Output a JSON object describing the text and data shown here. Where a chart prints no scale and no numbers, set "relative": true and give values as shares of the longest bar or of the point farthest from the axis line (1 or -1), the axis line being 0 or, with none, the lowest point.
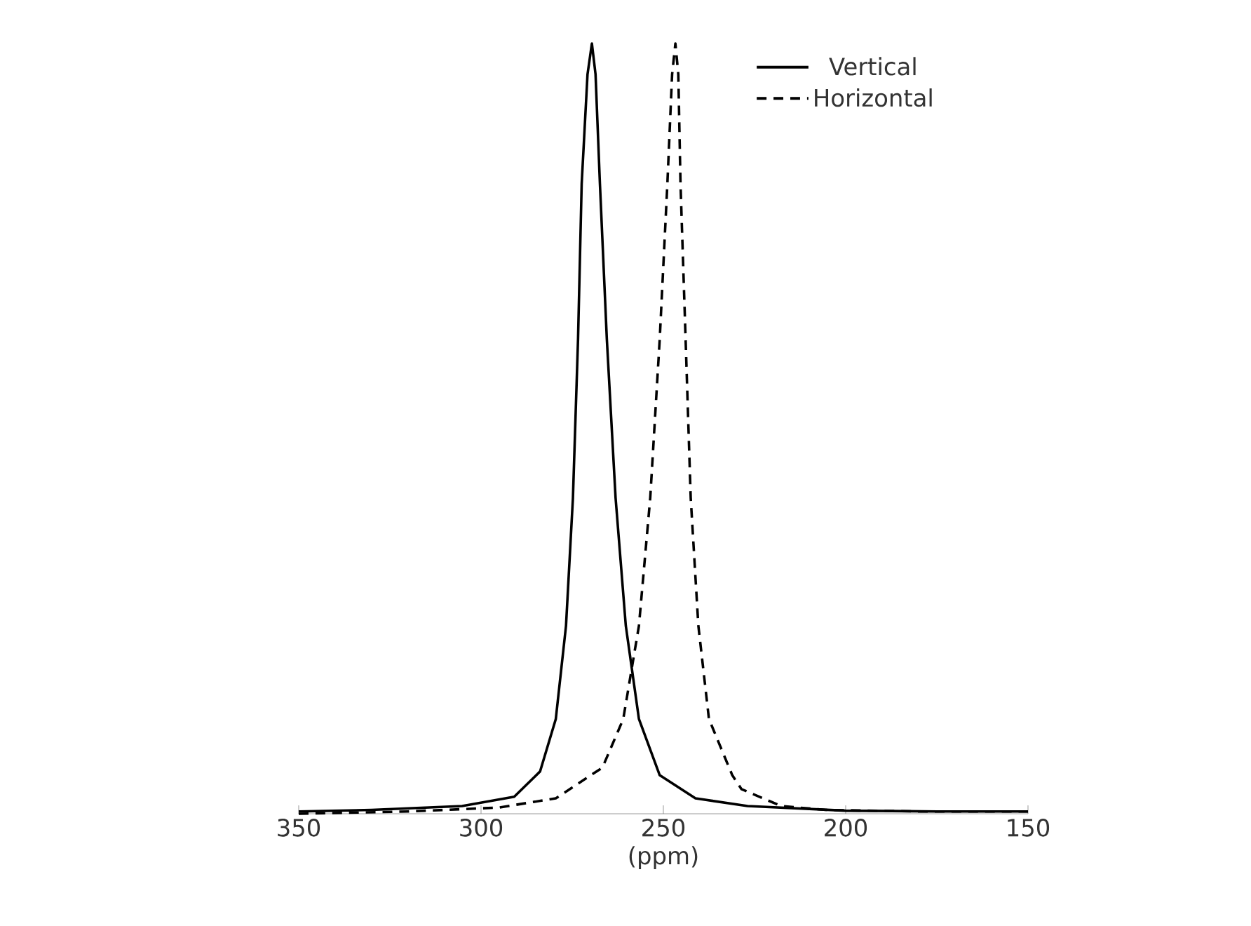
{
  "chart_data": {
    "type": "line",
    "xlabel": "(ppm)",
    "relative": true,
    "xlim": [
      350,
      150
    ],
    "xticks": [
      350,
      300,
      250,
      200,
      150
    ],
    "grid": false,
    "legend": "top right",
    "marker": "none",
    "series": [
      {
        "name": "Vertical",
        "color": "#000000",
        "line_style": "solid",
        "x": [
          350,
          330,
          305.2,
          290.9,
          283.8,
          279.5,
          276.7,
          274.8,
          273.4,
          272.4,
          270.8,
          269.6,
          268.6,
          267.4,
          265.5,
          263.1,
          260.3,
          256.7,
          251,
          241.2,
          226.9,
          200,
          175,
          150
        ],
        "values": [
          0.003,
          0.005,
          0.01,
          0.022,
          0.055,
          0.123,
          0.244,
          0.41,
          0.616,
          0.818,
          0.96,
          1.0,
          0.96,
          0.818,
          0.616,
          0.41,
          0.244,
          0.123,
          0.05,
          0.02,
          0.01,
          0.004,
          0.003,
          0.003
        ]
      },
      {
        "name": "Horizontal",
        "color": "#000000",
        "line_style": "dashed",
        "x": [
          350,
          320,
          295.2,
          279.5,
          266.7,
          261,
          256.7,
          253.6,
          251,
          248.9,
          247.6,
          246.7,
          245.9,
          245.3,
          243.9,
          242.5,
          240.4,
          237.5,
          231.1,
          228.6,
          217.7,
          205.5,
          180,
          150
        ],
        "values": [
          0.0,
          0.003,
          0.008,
          0.02,
          0.06,
          0.123,
          0.244,
          0.41,
          0.616,
          0.818,
          0.96,
          1.0,
          0.96,
          0.818,
          0.616,
          0.41,
          0.244,
          0.123,
          0.05,
          0.032,
          0.01,
          0.005,
          0.003,
          0.003
        ]
      }
    ]
  }
}
